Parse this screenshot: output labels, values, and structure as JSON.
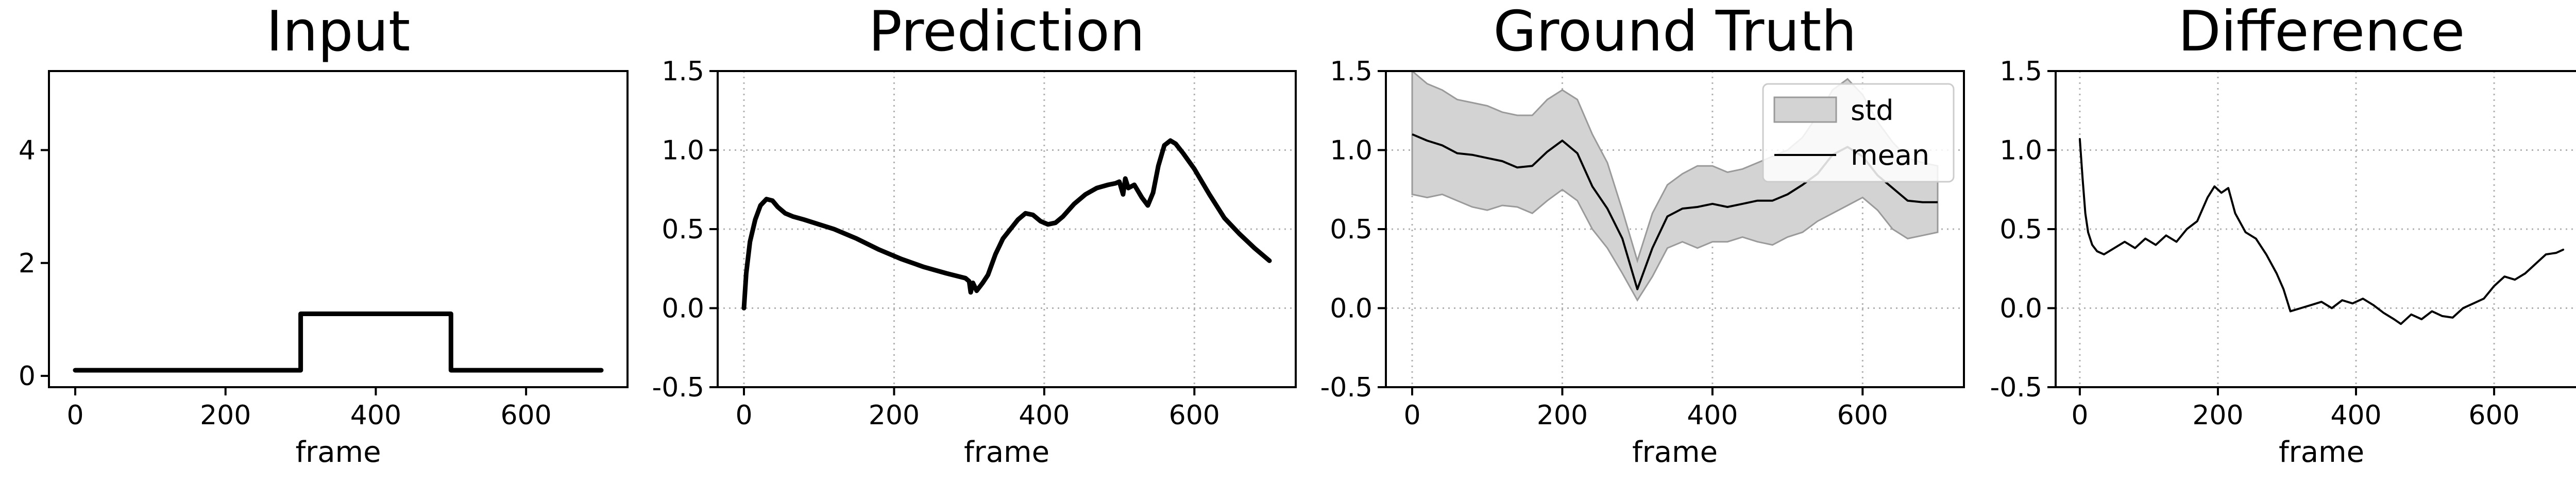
{
  "chart_data": [
    {
      "type": "line",
      "title": "Input",
      "xlabel": "frame",
      "ylabel": "",
      "xlim": [
        -35,
        735
      ],
      "ylim": [
        -0.2,
        5.4
      ],
      "xticks": [
        0,
        200,
        400,
        600
      ],
      "yticks": [
        0,
        2,
        4
      ],
      "grid": false,
      "series": [
        {
          "color": "#000000",
          "x": [
            0,
            300,
            300,
            500,
            500,
            700
          ],
          "y": [
            0.1,
            0.1,
            1.1,
            1.1,
            0.1,
            0.1
          ]
        }
      ]
    },
    {
      "type": "line",
      "title": "Prediction",
      "xlabel": "frame",
      "ylabel": "",
      "xlim": [
        -35,
        735
      ],
      "ylim": [
        -0.5,
        1.5
      ],
      "xticks": [
        0,
        200,
        400,
        600
      ],
      "yticks": [
        -0.5,
        0.0,
        0.5,
        1.0,
        1.5
      ],
      "grid": true,
      "series": [
        {
          "color": "#000000",
          "x": [
            0,
            3,
            8,
            15,
            22,
            30,
            38,
            45,
            55,
            65,
            80,
            100,
            120,
            150,
            180,
            210,
            240,
            270,
            295,
            300,
            302,
            305,
            310,
            318,
            325,
            335,
            345,
            355,
            365,
            375,
            385,
            395,
            405,
            415,
            425,
            440,
            455,
            470,
            485,
            495,
            500,
            505,
            508,
            512,
            520,
            530,
            538,
            545,
            552,
            560,
            568,
            575,
            585,
            600,
            620,
            640,
            660,
            680,
            700
          ],
          "y": [
            0.0,
            0.22,
            0.42,
            0.56,
            0.65,
            0.69,
            0.68,
            0.64,
            0.6,
            0.58,
            0.56,
            0.53,
            0.5,
            0.44,
            0.37,
            0.31,
            0.26,
            0.22,
            0.19,
            0.17,
            0.1,
            0.16,
            0.11,
            0.16,
            0.21,
            0.34,
            0.44,
            0.5,
            0.56,
            0.6,
            0.59,
            0.55,
            0.53,
            0.54,
            0.58,
            0.66,
            0.72,
            0.76,
            0.78,
            0.79,
            0.8,
            0.72,
            0.82,
            0.76,
            0.78,
            0.7,
            0.65,
            0.73,
            0.9,
            1.03,
            1.06,
            1.04,
            0.98,
            0.88,
            0.72,
            0.57,
            0.47,
            0.38,
            0.3
          ]
        }
      ]
    },
    {
      "type": "area",
      "title": "Ground Truth",
      "xlabel": "frame",
      "ylabel": "",
      "xlim": [
        -35,
        735
      ],
      "ylim": [
        -0.5,
        1.5
      ],
      "xticks": [
        0,
        200,
        400,
        600
      ],
      "yticks": [
        -0.5,
        0.0,
        0.5,
        1.0,
        1.5
      ],
      "grid": true,
      "legend": {
        "position": "top-right",
        "entries": [
          "std",
          "mean"
        ]
      },
      "x": [
        0,
        20,
        40,
        60,
        80,
        100,
        120,
        140,
        160,
        180,
        200,
        220,
        240,
        260,
        280,
        300,
        320,
        340,
        360,
        380,
        400,
        420,
        440,
        460,
        480,
        500,
        520,
        540,
        560,
        580,
        600,
        620,
        640,
        660,
        680,
        700
      ],
      "series": [
        {
          "name": "std",
          "color": "#d3d3d3",
          "upper": [
            1.5,
            1.42,
            1.38,
            1.32,
            1.3,
            1.28,
            1.24,
            1.22,
            1.22,
            1.32,
            1.38,
            1.32,
            1.1,
            0.92,
            0.62,
            0.3,
            0.6,
            0.78,
            0.85,
            0.9,
            0.9,
            0.86,
            0.88,
            0.92,
            0.96,
            1.0,
            1.08,
            1.22,
            1.38,
            1.45,
            1.35,
            1.18,
            1.05,
            0.95,
            0.92,
            0.9
          ],
          "lower": [
            0.72,
            0.7,
            0.72,
            0.68,
            0.64,
            0.62,
            0.65,
            0.64,
            0.6,
            0.68,
            0.75,
            0.68,
            0.5,
            0.38,
            0.22,
            0.05,
            0.2,
            0.38,
            0.42,
            0.38,
            0.42,
            0.42,
            0.45,
            0.42,
            0.4,
            0.45,
            0.48,
            0.55,
            0.6,
            0.65,
            0.7,
            0.62,
            0.5,
            0.44,
            0.46,
            0.48
          ]
        },
        {
          "name": "mean",
          "color": "#000000",
          "values": [
            1.1,
            1.06,
            1.03,
            0.98,
            0.97,
            0.95,
            0.93,
            0.89,
            0.9,
            0.99,
            1.06,
            0.98,
            0.77,
            0.63,
            0.44,
            0.12,
            0.38,
            0.58,
            0.63,
            0.64,
            0.66,
            0.64,
            0.66,
            0.68,
            0.68,
            0.72,
            0.78,
            0.85,
            0.97,
            1.02,
            0.96,
            0.84,
            0.76,
            0.68,
            0.67,
            0.67
          ]
        }
      ]
    },
    {
      "type": "line",
      "title": "Difference",
      "xlabel": "frame",
      "ylabel": "",
      "xlim": [
        -35,
        735
      ],
      "ylim": [
        -0.5,
        1.5
      ],
      "xticks": [
        0,
        200,
        400,
        600
      ],
      "yticks": [
        -0.5,
        0.0,
        0.5,
        1.0,
        1.5
      ],
      "grid": true,
      "series": [
        {
          "color": "#000000",
          "x": [
            0,
            4,
            8,
            12,
            18,
            25,
            35,
            50,
            65,
            80,
            95,
            110,
            125,
            140,
            155,
            170,
            185,
            195,
            205,
            215,
            225,
            240,
            255,
            270,
            285,
            295,
            305,
            320,
            335,
            350,
            365,
            380,
            395,
            410,
            425,
            440,
            455,
            465,
            480,
            495,
            510,
            525,
            540,
            555,
            570,
            585,
            600,
            615,
            630,
            645,
            660,
            675,
            690,
            700
          ],
          "y": [
            1.07,
            0.82,
            0.6,
            0.48,
            0.4,
            0.36,
            0.34,
            0.38,
            0.42,
            0.38,
            0.44,
            0.4,
            0.46,
            0.42,
            0.5,
            0.55,
            0.7,
            0.77,
            0.73,
            0.76,
            0.6,
            0.48,
            0.44,
            0.34,
            0.22,
            0.12,
            -0.02,
            0.0,
            0.02,
            0.04,
            0.0,
            0.05,
            0.03,
            0.06,
            0.02,
            -0.03,
            -0.07,
            -0.1,
            -0.04,
            -0.07,
            -0.02,
            -0.05,
            -0.06,
            0.0,
            0.03,
            0.06,
            0.14,
            0.2,
            0.18,
            0.22,
            0.28,
            0.34,
            0.35,
            0.37
          ]
        }
      ]
    }
  ]
}
